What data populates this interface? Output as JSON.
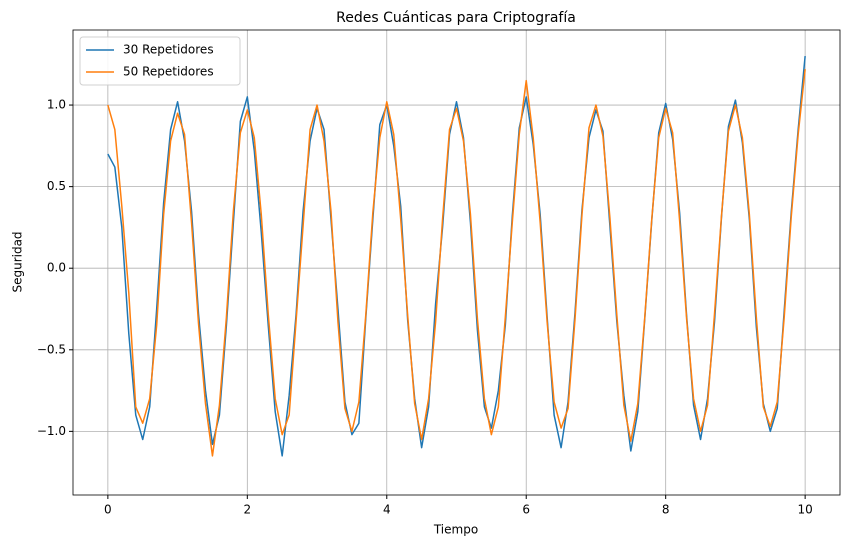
{
  "chart_data": {
    "type": "line",
    "title": "Redes Cuánticas para Criptografía",
    "x_label": "Tiempo",
    "y_label": "Seguridad",
    "x": [
      0,
      0.1,
      0.2,
      0.3,
      0.4,
      0.5,
      0.6,
      0.7,
      0.8,
      0.9,
      1,
      1.1,
      1.2,
      1.3,
      1.4,
      1.5,
      1.6,
      1.7,
      1.8,
      1.9,
      2,
      2.1,
      2.2,
      2.3,
      2.4,
      2.5,
      2.6,
      2.7,
      2.8,
      2.9,
      3,
      3.1,
      3.2,
      3.3,
      3.4,
      3.5,
      3.6,
      3.7,
      3.8,
      3.9,
      4,
      4.1,
      4.2,
      4.3,
      4.4,
      4.5,
      4.6,
      4.7,
      4.8,
      4.9,
      5,
      5.1,
      5.2,
      5.3,
      5.4,
      5.5,
      5.6,
      5.7,
      5.8,
      5.9,
      6,
      6.1,
      6.2,
      6.3,
      6.4,
      6.5,
      6.6,
      6.7,
      6.8,
      6.9,
      7,
      7.1,
      7.2,
      7.3,
      7.4,
      7.5,
      7.6,
      7.7,
      7.8,
      7.9,
      8,
      8.1,
      8.2,
      8.3,
      8.4,
      8.5,
      8.6,
      8.7,
      8.8,
      8.9,
      9,
      9.1,
      9.2,
      9.3,
      9.4,
      9.5,
      9.6,
      9.7,
      9.8,
      9.9,
      10
    ],
    "series": [
      {
        "name": "30 Repetidores",
        "color": "#1f77b4",
        "values": [
          0.7,
          0.62,
          0.25,
          -0.4,
          -0.9,
          -1.05,
          -0.85,
          -0.25,
          0.4,
          0.85,
          1.02,
          0.78,
          0.35,
          -0.28,
          -0.75,
          -1.08,
          -0.9,
          -0.35,
          0.28,
          0.9,
          1.05,
          0.72,
          0.22,
          -0.35,
          -0.88,
          -1.15,
          -0.78,
          -0.28,
          0.35,
          0.78,
          0.98,
          0.85,
          0.3,
          -0.25,
          -0.82,
          -1.02,
          -0.95,
          -0.3,
          0.3,
          0.88,
          1.0,
          0.75,
          0.38,
          -0.32,
          -0.8,
          -1.1,
          -0.85,
          -0.22,
          0.25,
          0.82,
          1.02,
          0.8,
          0.28,
          -0.38,
          -0.85,
          -0.98,
          -0.75,
          -0.35,
          0.32,
          0.86,
          1.05,
          0.76,
          0.33,
          -0.3,
          -0.9,
          -1.1,
          -0.82,
          -0.27,
          0.36,
          0.8,
          0.97,
          0.84,
          0.26,
          -0.33,
          -0.78,
          -1.12,
          -0.88,
          -0.31,
          0.29,
          0.83,
          1.01,
          0.79,
          0.34,
          -0.29,
          -0.84,
          -1.05,
          -0.8,
          -0.33,
          0.31,
          0.87,
          1.03,
          0.77,
          0.3,
          -0.36,
          -0.83,
          -1.0,
          -0.86,
          -0.26,
          0.34,
          0.85,
          1.3
        ]
      },
      {
        "name": "50 Repetidores",
        "color": "#ff7f0e",
        "values": [
          1.0,
          0.85,
          0.38,
          -0.15,
          -0.85,
          -0.95,
          -0.8,
          -0.35,
          0.33,
          0.78,
          0.95,
          0.82,
          0.28,
          -0.34,
          -0.83,
          -1.15,
          -0.84,
          -0.3,
          0.35,
          0.83,
          0.97,
          0.8,
          0.33,
          -0.28,
          -0.8,
          -1.02,
          -0.9,
          -0.32,
          0.26,
          0.85,
          1.0,
          0.78,
          0.35,
          -0.33,
          -0.86,
          -1.0,
          -0.82,
          -0.28,
          0.34,
          0.8,
          1.02,
          0.82,
          0.3,
          -0.29,
          -0.83,
          -1.05,
          -0.8,
          -0.33,
          0.3,
          0.85,
          0.98,
          0.78,
          0.33,
          -0.31,
          -0.8,
          -1.02,
          -0.85,
          -0.3,
          0.28,
          0.82,
          1.15,
          0.8,
          0.28,
          -0.33,
          -0.82,
          -0.98,
          -0.86,
          -0.31,
          0.33,
          0.86,
          1.0,
          0.81,
          0.31,
          -0.29,
          -0.84,
          -1.06,
          -0.83,
          -0.3,
          0.3,
          0.8,
          0.98,
          0.83,
          0.29,
          -0.31,
          -0.8,
          -1.0,
          -0.84,
          -0.28,
          0.32,
          0.84,
          1.0,
          0.8,
          0.33,
          -0.3,
          -0.85,
          -0.97,
          -0.82,
          -0.3,
          0.31,
          0.82,
          1.22
        ]
      }
    ],
    "xlim": [
      -0.5,
      10.5
    ],
    "ylim": [
      -1.39,
      1.46
    ],
    "xticks": [
      0,
      2,
      4,
      6,
      8,
      10
    ],
    "yticks": [
      {
        "value": -1,
        "label": "−1.0"
      },
      {
        "value": -0.5,
        "label": "−0.5"
      },
      {
        "value": 0,
        "label": "0.0"
      },
      {
        "value": 0.5,
        "label": "0.5"
      },
      {
        "value": 1,
        "label": "1.0"
      }
    ],
    "grid": true,
    "legend": "upper left"
  }
}
